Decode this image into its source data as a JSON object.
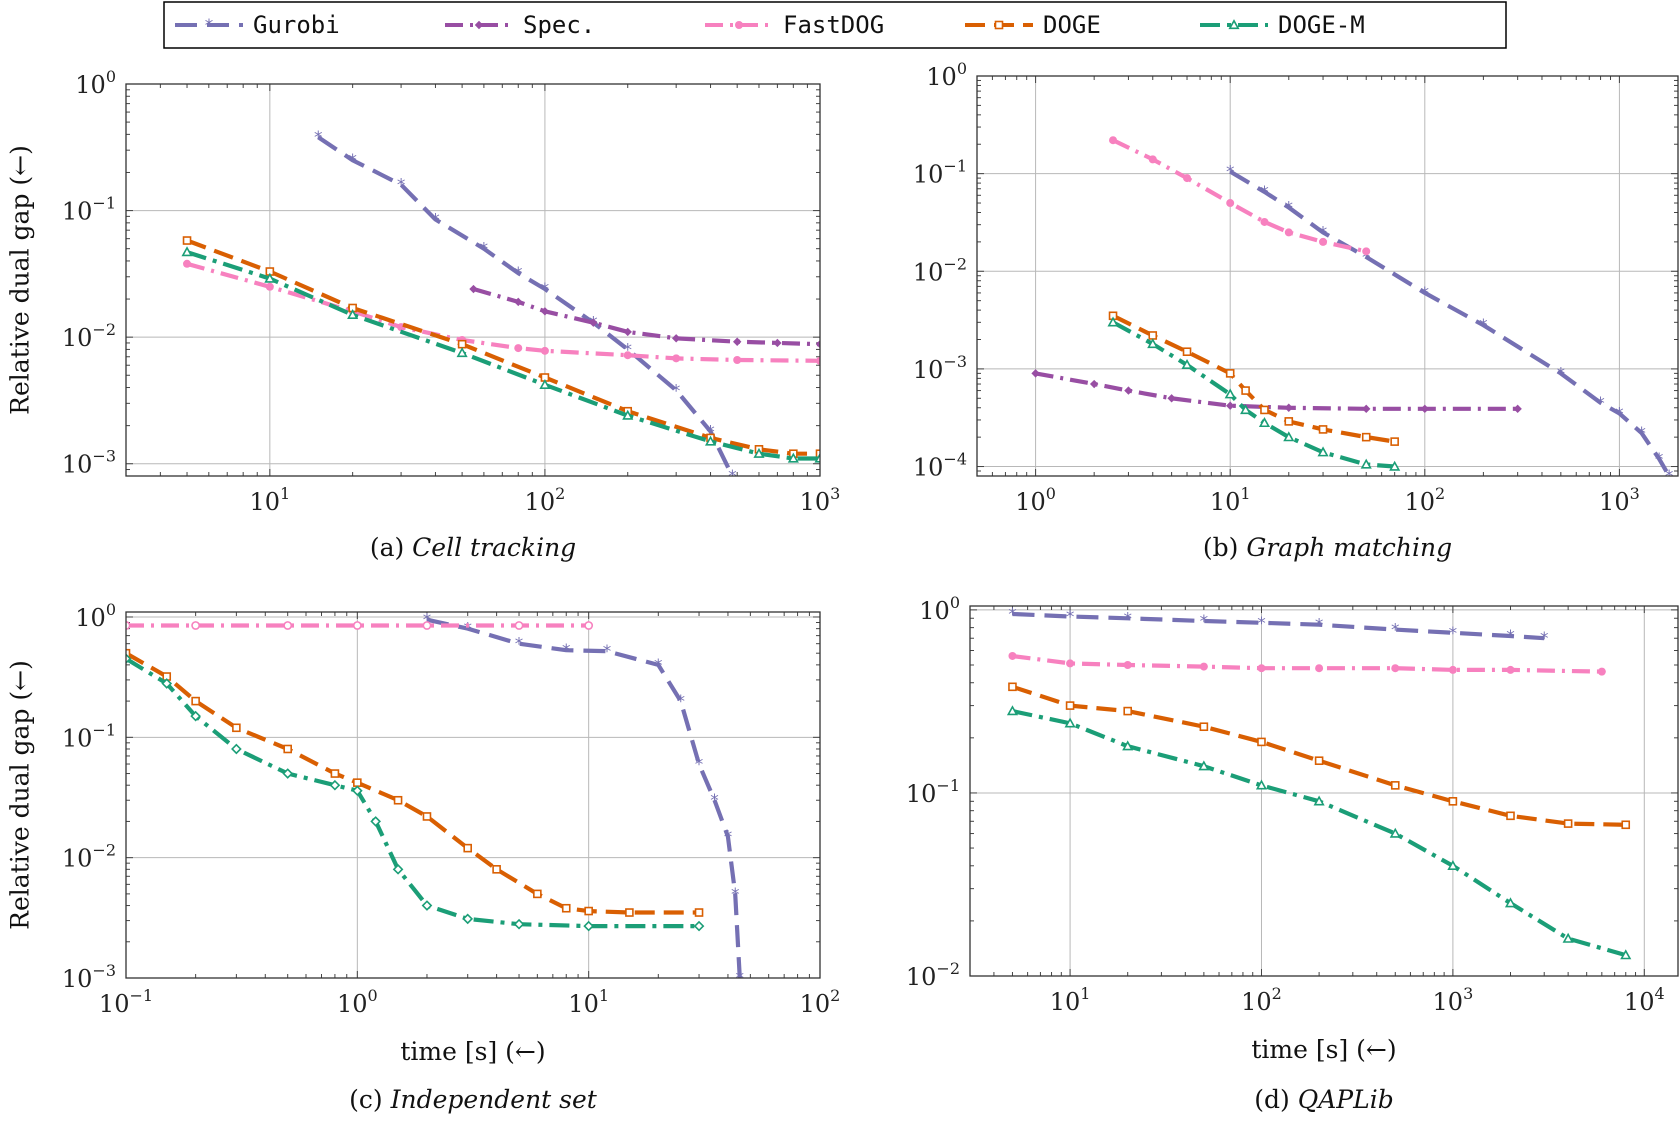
{
  "legend": [
    {
      "name": "Gurobi",
      "color": "#7570b3",
      "marker": "star"
    },
    {
      "name": "Spec.",
      "color": "#984ea3",
      "marker": "diamond"
    },
    {
      "name": "FastDOG",
      "color": "#f781bf",
      "marker": "circle"
    },
    {
      "name": "DOGE",
      "color": "#d95f02",
      "marker": "square"
    },
    {
      "name": "DOGE-M",
      "color": "#1b9e77",
      "marker": "triangle"
    }
  ],
  "chart_data": [
    {
      "type": "line",
      "caption_prefix": "(a) ",
      "caption_italic": "Cell tracking",
      "xscale": "log",
      "yscale": "log",
      "xlim": [
        3,
        1000
      ],
      "ylim": [
        0.0008,
        1
      ],
      "xticks": [
        {
          "exp": "1",
          "v": 10
        },
        {
          "exp": "2",
          "v": 100
        },
        {
          "exp": "3",
          "v": 1000
        }
      ],
      "yticks": [
        {
          "exp": "0",
          "v": 1
        },
        {
          "exp": "−1",
          "v": 0.1
        },
        {
          "exp": "−2",
          "v": 0.01
        },
        {
          "exp": "−3",
          "v": 0.001
        }
      ],
      "ylabel": "Relative dual gap (←)",
      "xlabel": "",
      "grid": true,
      "series": [
        {
          "name": "Gurobi",
          "x": [
            15,
            20,
            30,
            40,
            60,
            80,
            100,
            150,
            200,
            300,
            400,
            480
          ],
          "y": [
            0.38,
            0.25,
            0.16,
            0.085,
            0.05,
            0.032,
            0.024,
            0.013,
            0.008,
            0.0038,
            0.0018,
            0.0008
          ]
        },
        {
          "name": "Spec.",
          "x": [
            55,
            80,
            100,
            150,
            200,
            300,
            500,
            700,
            1000
          ],
          "y": [
            0.024,
            0.019,
            0.016,
            0.013,
            0.011,
            0.0098,
            0.0092,
            0.009,
            0.0088
          ]
        },
        {
          "name": "FastDOG",
          "x": [
            5,
            10,
            20,
            30,
            50,
            80,
            100,
            200,
            300,
            500,
            1000
          ],
          "y": [
            0.038,
            0.025,
            0.016,
            0.012,
            0.0095,
            0.0082,
            0.0078,
            0.0072,
            0.0068,
            0.0066,
            0.0065
          ]
        },
        {
          "name": "DOGE",
          "x": [
            5,
            10,
            20,
            50,
            100,
            200,
            400,
            600,
            800,
            1000
          ],
          "y": [
            0.058,
            0.033,
            0.017,
            0.0088,
            0.0048,
            0.0026,
            0.0016,
            0.0013,
            0.0012,
            0.0012
          ]
        },
        {
          "name": "DOGE-M",
          "x": [
            5,
            10,
            20,
            50,
            100,
            200,
            400,
            600,
            800,
            1000
          ],
          "y": [
            0.047,
            0.029,
            0.015,
            0.0075,
            0.0042,
            0.0024,
            0.0015,
            0.0012,
            0.0011,
            0.0011
          ]
        }
      ]
    },
    {
      "type": "line",
      "caption_prefix": "(b) ",
      "caption_italic": "Graph matching",
      "xscale": "log",
      "yscale": "log",
      "xlim": [
        0.5,
        2000
      ],
      "ylim": [
        8e-05,
        1
      ],
      "xticks": [
        {
          "exp": "0",
          "v": 1
        },
        {
          "exp": "1",
          "v": 10
        },
        {
          "exp": "2",
          "v": 100
        },
        {
          "exp": "3",
          "v": 1000
        }
      ],
      "yticks": [
        {
          "exp": "0",
          "v": 1
        },
        {
          "exp": "−1",
          "v": 0.1
        },
        {
          "exp": "−2",
          "v": 0.01
        },
        {
          "exp": "−3",
          "v": 0.001
        },
        {
          "exp": "−4",
          "v": 0.0001
        }
      ],
      "ylabel": "",
      "xlabel": "",
      "grid": true,
      "series": [
        {
          "name": "Gurobi",
          "x": [
            10,
            15,
            20,
            30,
            50,
            100,
            200,
            500,
            800,
            1000,
            1300,
            1600,
            1800
          ],
          "y": [
            0.105,
            0.065,
            0.045,
            0.025,
            0.014,
            0.006,
            0.0028,
            0.0009,
            0.00045,
            0.00035,
            0.00022,
            0.00012,
            8e-05
          ]
        },
        {
          "name": "Spec.",
          "x": [
            1,
            2,
            3,
            5,
            10,
            20,
            50,
            100,
            300
          ],
          "y": [
            0.0009,
            0.0007,
            0.0006,
            0.0005,
            0.00042,
            0.0004,
            0.00039,
            0.00039,
            0.00039
          ]
        },
        {
          "name": "FastDOG",
          "x": [
            2.5,
            4,
            6,
            10,
            15,
            20,
            30,
            50
          ],
          "y": [
            0.22,
            0.14,
            0.09,
            0.05,
            0.032,
            0.025,
            0.02,
            0.016
          ]
        },
        {
          "name": "DOGE",
          "x": [
            2.5,
            4,
            6,
            10,
            12,
            15,
            20,
            30,
            50,
            70
          ],
          "y": [
            0.0035,
            0.0022,
            0.0015,
            0.0009,
            0.0006,
            0.00038,
            0.00029,
            0.00024,
            0.0002,
            0.00018
          ]
        },
        {
          "name": "DOGE-M",
          "x": [
            2.5,
            4,
            6,
            10,
            12,
            15,
            20,
            30,
            50,
            70
          ],
          "y": [
            0.003,
            0.0018,
            0.0011,
            0.00055,
            0.00038,
            0.00028,
            0.0002,
            0.00014,
            0.000105,
            0.0001
          ]
        }
      ]
    },
    {
      "type": "line",
      "caption_prefix": "(c) ",
      "caption_italic": "Independent set",
      "xscale": "log",
      "yscale": "log",
      "xlim": [
        0.1,
        100
      ],
      "ylim": [
        0.001,
        1.1
      ],
      "xticks": [
        {
          "exp": "−1",
          "v": 0.1
        },
        {
          "exp": "0",
          "v": 1
        },
        {
          "exp": "1",
          "v": 10
        },
        {
          "exp": "2",
          "v": 100
        }
      ],
      "yticks": [
        {
          "exp": "0",
          "v": 1
        },
        {
          "exp": "−1",
          "v": 0.1
        },
        {
          "exp": "−2",
          "v": 0.01
        },
        {
          "exp": "−3",
          "v": 0.001
        }
      ],
      "ylabel": "Relative dual gap (←)",
      "xlabel": "time [s] (←)",
      "grid": true,
      "series": [
        {
          "name": "Gurobi",
          "x": [
            2,
            3,
            5,
            8,
            12,
            20,
            25,
            30,
            35,
            40,
            43,
            45
          ],
          "y": [
            0.95,
            0.8,
            0.6,
            0.53,
            0.52,
            0.4,
            0.2,
            0.06,
            0.03,
            0.015,
            0.005,
            0.001
          ]
        },
        {
          "name": "FastDOG",
          "x": [
            0.1,
            0.2,
            0.5,
            1,
            2,
            5,
            10
          ],
          "y": [
            0.85,
            0.85,
            0.85,
            0.85,
            0.85,
            0.85,
            0.85
          ]
        },
        {
          "name": "DOGE",
          "x": [
            0.1,
            0.15,
            0.2,
            0.3,
            0.5,
            0.8,
            1,
            1.5,
            2,
            3,
            4,
            6,
            8,
            10,
            15,
            30
          ],
          "y": [
            0.5,
            0.32,
            0.2,
            0.12,
            0.08,
            0.05,
            0.042,
            0.03,
            0.022,
            0.012,
            0.008,
            0.005,
            0.0038,
            0.0036,
            0.0035,
            0.0035
          ]
        },
        {
          "name": "DOGE-M",
          "x": [
            0.1,
            0.15,
            0.2,
            0.3,
            0.5,
            0.8,
            1,
            1.2,
            1.5,
            2,
            3,
            5,
            10,
            30
          ],
          "y": [
            0.45,
            0.28,
            0.15,
            0.08,
            0.05,
            0.04,
            0.036,
            0.02,
            0.008,
            0.004,
            0.0031,
            0.0028,
            0.0027,
            0.0027
          ]
        }
      ]
    },
    {
      "type": "line",
      "caption_prefix": "(d) ",
      "caption_italic": "QAPLib",
      "xscale": "log",
      "yscale": "log",
      "xlim": [
        3,
        15000
      ],
      "ylim": [
        0.01,
        1.05
      ],
      "xticks": [
        {
          "exp": "1",
          "v": 10
        },
        {
          "exp": "2",
          "v": 100
        },
        {
          "exp": "3",
          "v": 1000
        },
        {
          "exp": "4",
          "v": 10000
        }
      ],
      "yticks": [
        {
          "exp": "0",
          "v": 1
        },
        {
          "exp": "−1",
          "v": 0.1
        },
        {
          "exp": "−2",
          "v": 0.01
        }
      ],
      "ylabel": "",
      "xlabel": "time [s] (←)",
      "grid": true,
      "series": [
        {
          "name": "Gurobi",
          "x": [
            5,
            10,
            20,
            50,
            100,
            200,
            500,
            1000,
            2000,
            3000
          ],
          "y": [
            0.95,
            0.92,
            0.9,
            0.87,
            0.85,
            0.83,
            0.78,
            0.75,
            0.72,
            0.7
          ]
        },
        {
          "name": "FastDOG",
          "x": [
            5,
            10,
            20,
            50,
            100,
            200,
            500,
            1000,
            2000,
            6000
          ],
          "y": [
            0.56,
            0.51,
            0.5,
            0.49,
            0.48,
            0.48,
            0.48,
            0.47,
            0.47,
            0.46
          ]
        },
        {
          "name": "DOGE",
          "x": [
            5,
            10,
            20,
            50,
            100,
            200,
            500,
            1000,
            2000,
            4000,
            8000
          ],
          "y": [
            0.38,
            0.3,
            0.28,
            0.23,
            0.19,
            0.15,
            0.11,
            0.09,
            0.075,
            0.068,
            0.067
          ]
        },
        {
          "name": "DOGE-M",
          "x": [
            5,
            10,
            20,
            50,
            100,
            200,
            500,
            1000,
            2000,
            4000,
            8000
          ],
          "y": [
            0.28,
            0.24,
            0.18,
            0.14,
            0.11,
            0.09,
            0.06,
            0.04,
            0.025,
            0.016,
            0.013
          ]
        }
      ]
    }
  ]
}
